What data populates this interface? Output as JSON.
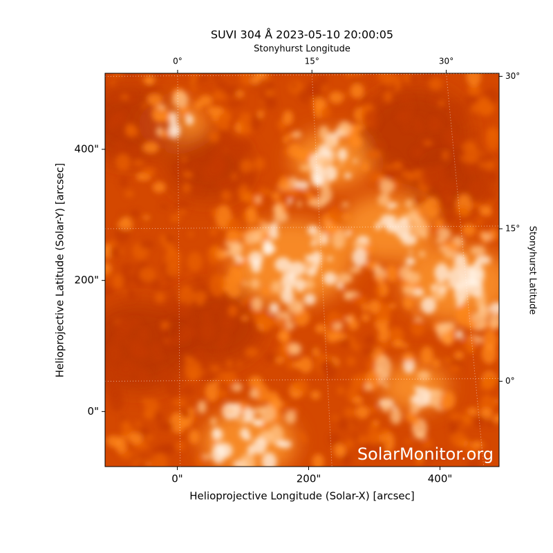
{
  "chart_data": {
    "type": "image",
    "title": "SUVI 304 Å 2023-05-10 20:00:05",
    "xlabel": "Helioprojective Longitude (Solar-X) [arcsec]",
    "ylabel": "Helioprojective Latitude (Solar-Y) [arcsec]",
    "x2label": "Stonyhurst Longitude",
    "y2label": "Stonyhurst Latitude",
    "watermark": "SolarMonitor.org",
    "xlim": [
      -110,
      490
    ],
    "ylim": [
      -84,
      516
    ],
    "xticks": [
      {
        "value": 0,
        "label": "0\""
      },
      {
        "value": 200,
        "label": "200\""
      },
      {
        "value": 400,
        "label": "400\""
      }
    ],
    "yticks": [
      {
        "value": 0,
        "label": "0\""
      },
      {
        "value": 200,
        "label": "200\""
      },
      {
        "value": 400,
        "label": "400\""
      }
    ],
    "x2lim": [
      -8.1,
      35.9
    ],
    "x2ticks": [
      {
        "value": 0,
        "label": "0°"
      },
      {
        "value": 15,
        "label": "15°"
      },
      {
        "value": 30,
        "label": "30°"
      }
    ],
    "y2lim": [
      -8.4,
      30.3
    ],
    "y2ticks": [
      {
        "value": 0,
        "label": "0°"
      },
      {
        "value": 15,
        "label": "15°"
      },
      {
        "value": 30,
        "label": "30°"
      }
    ],
    "grid": true
  }
}
